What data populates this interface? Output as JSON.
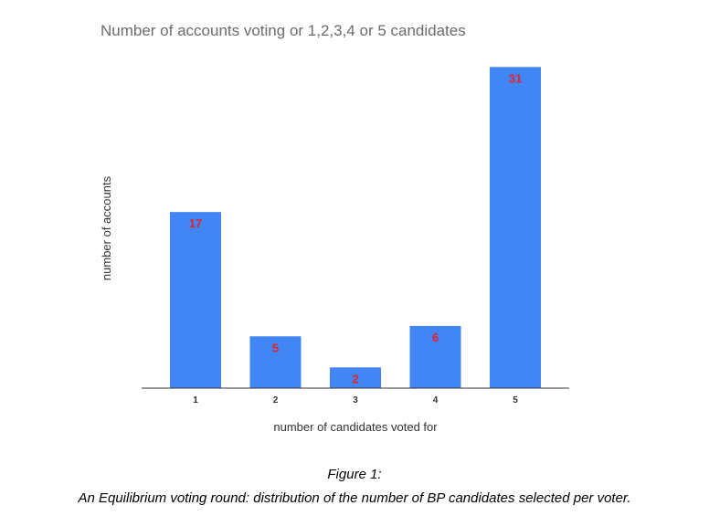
{
  "chart_data": {
    "type": "bar",
    "title": "Number of accounts voting or 1,2,3,4 or 5 candidates",
    "xlabel": "number of candidates voted for",
    "ylabel": "number of accounts",
    "categories": [
      "1",
      "2",
      "3",
      "4",
      "5"
    ],
    "values": [
      17,
      5,
      2,
      6,
      31
    ],
    "data_labels": [
      "17",
      "5",
      "2",
      "6",
      "31"
    ],
    "ylim": [
      0,
      32
    ],
    "grid": false,
    "legend": "none",
    "bar_color": "#4285F4",
    "label_color": "#E8212B"
  },
  "caption": {
    "line1": "Figure 1:",
    "line2": "An Equilibrium voting round: distribution of the number of BP candidates selected per voter."
  }
}
